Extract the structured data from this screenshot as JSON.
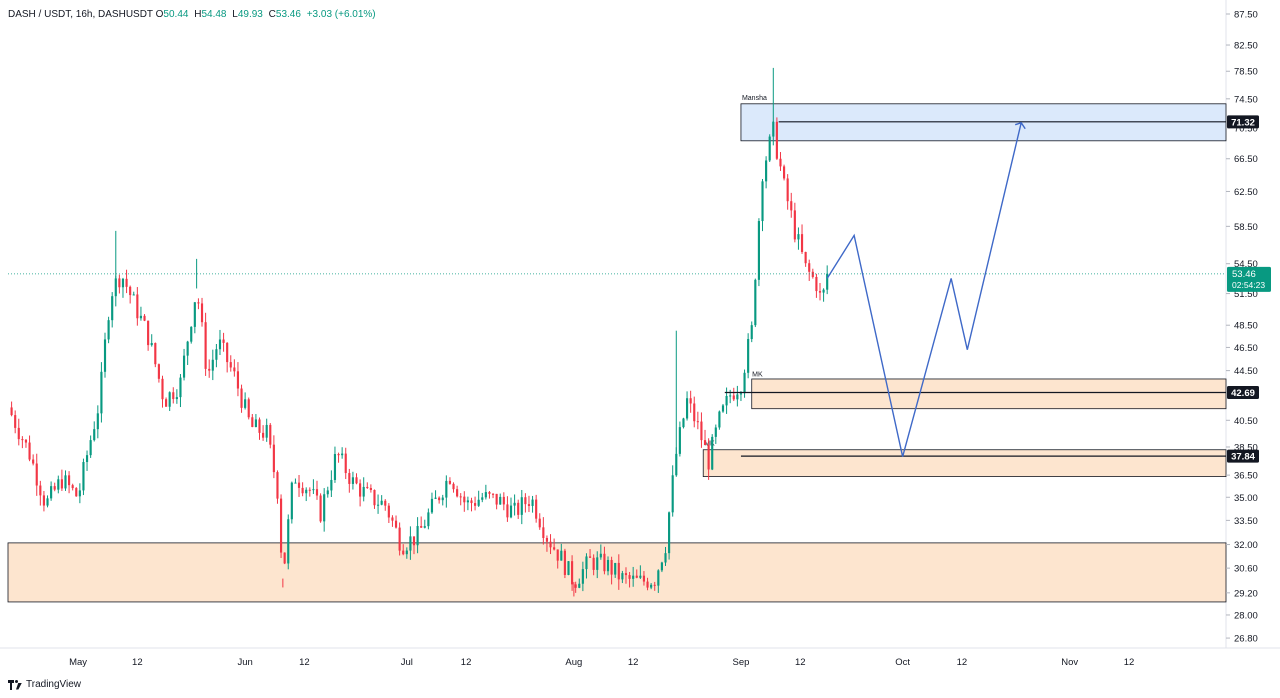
{
  "header": {
    "symbol": "DASH / USDT, 16h, DASHUSDT",
    "o_label": "O",
    "o_value": "50.44",
    "h_label": "H",
    "h_value": "54.48",
    "l_label": "L",
    "l_value": "49.93",
    "c_label": "C",
    "c_value": "53.46",
    "change": "+3.03 (+6.01%)"
  },
  "brand": {
    "label": "TradingView"
  },
  "colors": {
    "up": "#089981",
    "down": "#f23645",
    "zone_blue": "#dbe9fb",
    "zone_orange": "#fde5cf",
    "projection": "#3f69c8",
    "badge": "#089981"
  },
  "chart_data": {
    "type": "candlestick",
    "title": "DASH / USDT, 16h, DASHUSDT",
    "ylim": [
      26.3,
      88.5
    ],
    "y_ticks": [
      "87.50",
      "82.50",
      "78.50",
      "74.50",
      "70.50",
      "66.50",
      "62.50",
      "58.50",
      "54.50",
      "51.50",
      "48.50",
      "46.50",
      "44.50",
      "40.50",
      "38.50",
      "36.50",
      "35.00",
      "33.50",
      "32.00",
      "30.60",
      "29.20",
      "28.00",
      "26.80"
    ],
    "x_ticks": [
      "May",
      "12",
      "Jun",
      "12",
      "Jul",
      "12",
      "Aug",
      "12",
      "Sep",
      "12",
      "Oct",
      "12",
      "Nov",
      "12"
    ],
    "x_tick_dates": [
      "2024-05-01",
      "2024-05-12",
      "2024-06-01",
      "2024-06-12",
      "2024-07-01",
      "2024-07-12",
      "2024-08-01",
      "2024-08-12",
      "2024-09-01",
      "2024-09-12",
      "2024-10-01",
      "2024-10-12",
      "2024-11-01",
      "2024-11-12"
    ],
    "candle_interval": "16h",
    "price_path": [
      [
        "2024-04-18",
        41.5
      ],
      [
        "2024-04-22",
        38.0
      ],
      [
        "2024-04-25",
        34.5
      ],
      [
        "2024-04-28",
        36.2
      ],
      [
        "2024-05-01",
        35.0
      ],
      [
        "2024-05-03",
        38.5
      ],
      [
        "2024-05-05",
        42.0
      ],
      [
        "2024-05-07",
        51.5
      ],
      [
        "2024-05-09",
        53.5
      ],
      [
        "2024-05-11",
        51.0
      ],
      [
        "2024-05-14",
        47.5
      ],
      [
        "2024-05-17",
        42.0
      ],
      [
        "2024-05-20",
        43.5
      ],
      [
        "2024-05-23",
        52.0
      ],
      [
        "2024-05-25",
        44.0
      ],
      [
        "2024-05-27",
        47.0
      ],
      [
        "2024-05-30",
        44.0
      ],
      [
        "2024-06-02",
        40.0
      ],
      [
        "2024-06-05",
        39.5
      ],
      [
        "2024-06-07",
        35.5
      ],
      [
        "2024-06-08",
        30.0
      ],
      [
        "2024-06-10",
        36.5
      ],
      [
        "2024-06-13",
        35.5
      ],
      [
        "2024-06-15",
        34.0
      ],
      [
        "2024-06-18",
        38.0
      ],
      [
        "2024-06-21",
        36.0
      ],
      [
        "2024-06-24",
        35.0
      ],
      [
        "2024-06-27",
        34.5
      ],
      [
        "2024-06-30",
        32.0
      ],
      [
        "2024-07-03",
        32.5
      ],
      [
        "2024-07-06",
        34.5
      ],
      [
        "2024-07-09",
        36.5
      ],
      [
        "2024-07-12",
        34.5
      ],
      [
        "2024-07-15",
        35.0
      ],
      [
        "2024-07-18",
        34.8
      ],
      [
        "2024-07-21",
        34.0
      ],
      [
        "2024-07-24",
        35.0
      ],
      [
        "2024-07-27",
        32.5
      ],
      [
        "2024-07-30",
        31.0
      ],
      [
        "2024-08-01",
        29.8
      ],
      [
        "2024-08-04",
        31.0
      ],
      [
        "2024-08-07",
        30.8
      ],
      [
        "2024-08-10",
        30.0
      ],
      [
        "2024-08-13",
        29.8
      ],
      [
        "2024-08-16",
        30.0
      ],
      [
        "2024-08-18",
        32.0
      ],
      [
        "2024-08-20",
        38.0
      ],
      [
        "2024-08-22",
        42.0
      ],
      [
        "2024-08-24",
        40.0
      ],
      [
        "2024-08-26",
        37.5
      ],
      [
        "2024-08-28",
        40.5
      ],
      [
        "2024-08-30",
        42.5
      ],
      [
        "2024-09-01",
        43.5
      ],
      [
        "2024-09-03",
        48.0
      ],
      [
        "2024-09-05",
        65.0
      ],
      [
        "2024-09-07",
        70.0
      ],
      [
        "2024-09-09",
        63.0
      ],
      [
        "2024-09-11",
        58.0
      ],
      [
        "2024-09-13",
        54.0
      ],
      [
        "2024-09-15",
        52.5
      ],
      [
        "2024-09-16",
        50.5
      ],
      [
        "2024-09-17",
        53.46
      ]
    ],
    "special_wicks": [
      {
        "date": "2024-05-08",
        "high": 58.0
      },
      {
        "date": "2024-05-23",
        "high": 55.0
      },
      {
        "date": "2024-06-08",
        "low": 29.5
      },
      {
        "date": "2024-08-20",
        "high": 48.0
      },
      {
        "date": "2024-09-07",
        "high": 79.0
      },
      {
        "date": "2024-08-01",
        "low": 29.0
      }
    ],
    "zones": [
      {
        "label": "Mansha",
        "from": "2024-09-01",
        "to": "2024-11-30",
        "low": 68.8,
        "high": 73.8,
        "color": "blue"
      },
      {
        "label": "",
        "from": "2024-09-03",
        "to": "2024-11-30",
        "low": 41.4,
        "high": 43.8,
        "color": "orange"
      },
      {
        "label": "MK",
        "from": "2024-08-25",
        "to": "2024-11-30",
        "low": 36.4,
        "high": 38.3,
        "color": "orange"
      },
      {
        "label": "",
        "from": "2024-04-18",
        "to": "2024-11-30",
        "low": 28.7,
        "high": 32.1,
        "color": "orange"
      }
    ],
    "zone_mk_small": {
      "label": "MK",
      "date": "2024-09-04",
      "value": 44.0
    },
    "levels": [
      {
        "value": 71.32,
        "label": "71.32",
        "from": "2024-09-08"
      },
      {
        "value": 42.69,
        "label": "42.69",
        "from": "2024-08-29"
      },
      {
        "value": 37.84,
        "label": "37.84",
        "from": "2024-09-01"
      }
    ],
    "current_price": {
      "value": 53.46,
      "label": "53.46",
      "countdown": "02:54:23"
    },
    "projection_path": [
      [
        "2024-09-17",
        53.0
      ],
      [
        "2024-09-22",
        57.5
      ],
      [
        "2024-10-01",
        37.8
      ],
      [
        "2024-10-10",
        53.0
      ],
      [
        "2024-10-13",
        46.3
      ],
      [
        "2024-10-23",
        71.2
      ]
    ]
  }
}
